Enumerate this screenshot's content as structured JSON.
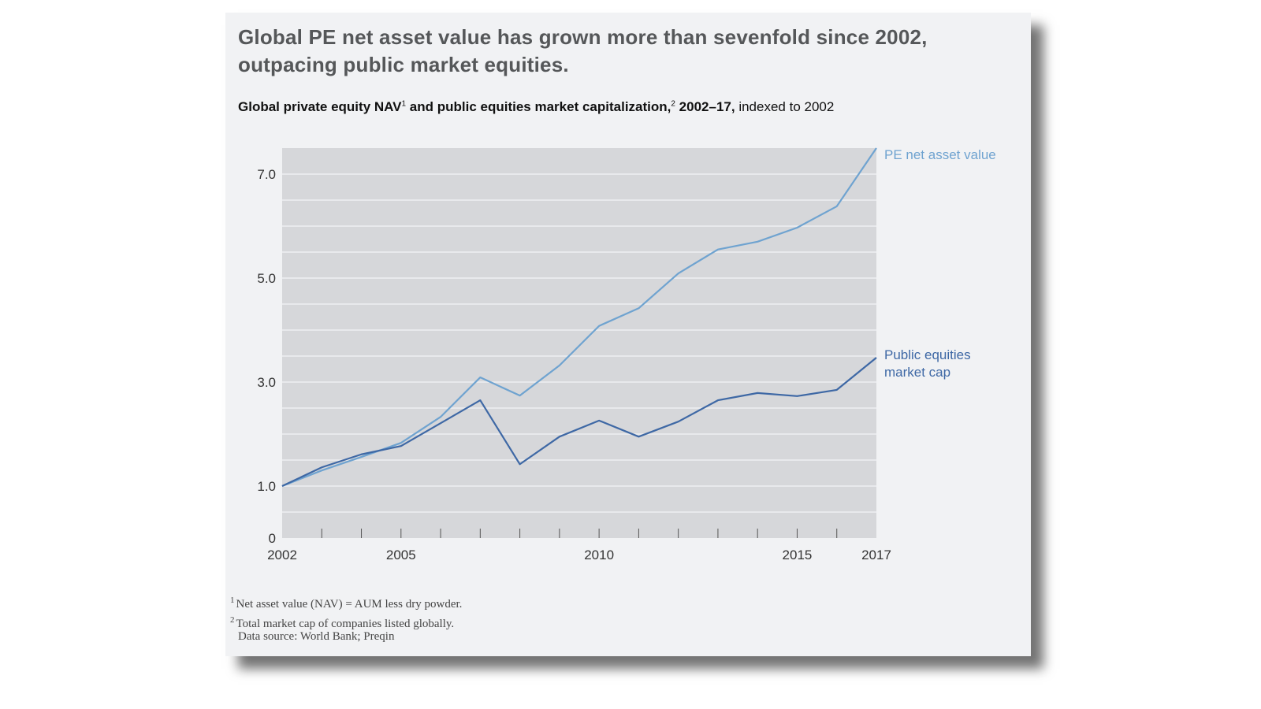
{
  "title": "Global PE net asset value has grown more than sevenfold since 2002, outpacing public market equities.",
  "subtitle": {
    "part1": "Global private equity NAV",
    "sup1": "1",
    "part2": " and public equities market capitalization,",
    "sup2": "2",
    "part3": " 2002–17,",
    "part4": " indexed to 2002"
  },
  "footnotes": [
    {
      "num": "1",
      "text": "Net asset value (NAV) = AUM less dry powder."
    },
    {
      "num": "2",
      "text": "Total market cap of companies listed globally."
    }
  ],
  "source": "Data source: World Bank; Preqin",
  "colors": {
    "pe": "#6fa3d0",
    "public": "#3e68a5",
    "plot_bg": "#d6d7da",
    "grid": "#eeeff1"
  },
  "chart_data": {
    "type": "line",
    "title": "Global private equity NAV and public equities market capitalization, 2002–17, indexed to 2002",
    "xlabel": "",
    "ylabel": "",
    "x": [
      2002,
      2003,
      2004,
      2005,
      2006,
      2007,
      2008,
      2009,
      2010,
      2011,
      2012,
      2013,
      2014,
      2015,
      2016,
      2017
    ],
    "xticks_labeled": [
      "2002",
      "2005",
      "2010",
      "2015",
      "2017"
    ],
    "yticks_labeled": [
      "0",
      "1.0",
      "3.0",
      "5.0",
      "7.0"
    ],
    "ylim": [
      0,
      7.5
    ],
    "grid_step": 0.5,
    "grid": true,
    "legend": "direct labels at right end of lines",
    "series": [
      {
        "name": "PE net asset value",
        "values": [
          1.0,
          1.3,
          1.56,
          1.83,
          2.33,
          3.09,
          2.74,
          3.32,
          4.08,
          4.42,
          5.09,
          5.55,
          5.7,
          5.97,
          6.38,
          7.5
        ]
      },
      {
        "name": "Public equities market cap",
        "label_lines": [
          "Public equities",
          "market cap"
        ],
        "values": [
          1.0,
          1.36,
          1.61,
          1.77,
          2.21,
          2.65,
          1.42,
          1.95,
          2.26,
          1.95,
          2.24,
          2.65,
          2.79,
          2.73,
          2.85,
          3.47
        ]
      }
    ]
  }
}
